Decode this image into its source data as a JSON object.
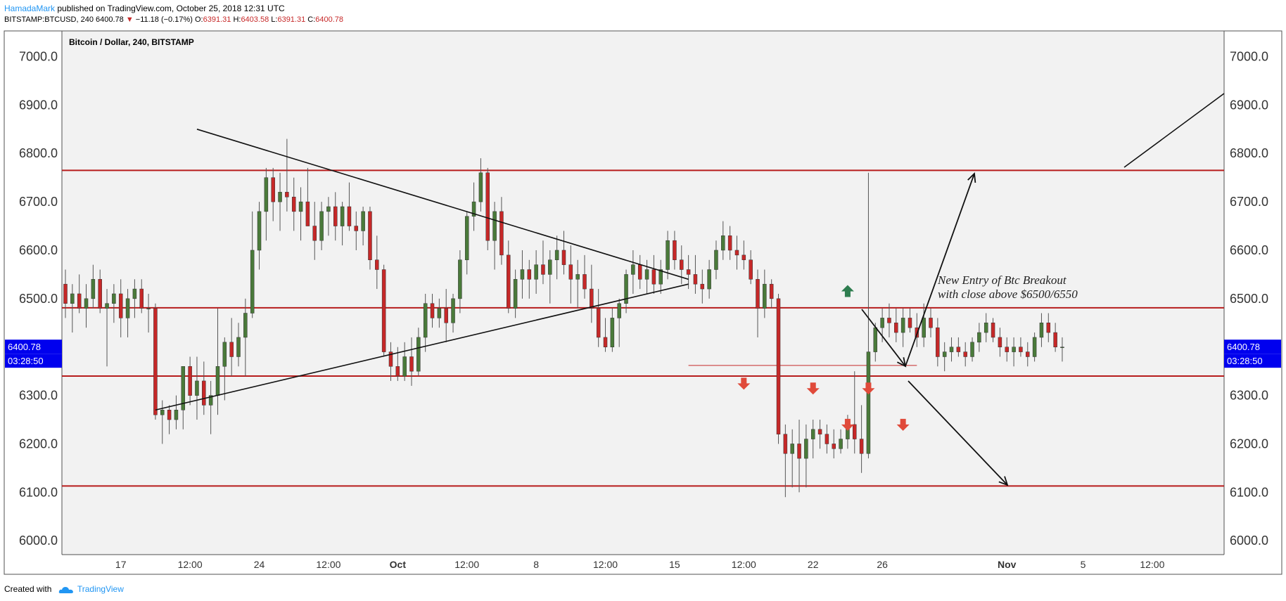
{
  "header": {
    "author": "HamadaMark",
    "published": "published on TradingView.com, October 25, 2018 12:31 UTC",
    "symbol_line": "BITSTAMP:BTCUSD, 240 6400.78",
    "change": "−11.18 (−0.17%)",
    "o_label": "O:",
    "o_value": "6391.31",
    "h_label": "H:",
    "h_value": "6403.58",
    "l_label": "L:",
    "l_value": "6391.31",
    "c_label": "C:",
    "c_value": "6400.78",
    "down_arrow": "▼"
  },
  "footer": {
    "created_with": "Created with",
    "brand": "TradingView"
  },
  "chart_data": {
    "type": "candlestick",
    "title": "Bitcoin / Dollar, 240, BITSTAMP",
    "ylim": [
      5970,
      7030
    ],
    "y_ticks": [
      "7000.0",
      "6900.0",
      "6800.0",
      "6700.0",
      "6600.0",
      "6500.0",
      "6400.0",
      "6300.0",
      "6200.0",
      "6100.0",
      "6000.0"
    ],
    "y_tick_values": [
      7000,
      6900,
      6800,
      6700,
      6600,
      6500,
      6400,
      6300,
      6200,
      6100,
      6000
    ],
    "x_ticks": [
      {
        "label": "17",
        "bar": 8
      },
      {
        "label": "12:00",
        "bar": 18
      },
      {
        "label": "24",
        "bar": 28
      },
      {
        "label": "12:00",
        "bar": 38
      },
      {
        "label": "Oct",
        "bar": 48,
        "bold": true
      },
      {
        "label": "12:00",
        "bar": 58
      },
      {
        "label": "8",
        "bar": 68
      },
      {
        "label": "12:00",
        "bar": 78
      },
      {
        "label": "15",
        "bar": 88
      },
      {
        "label": "12:00",
        "bar": 98
      },
      {
        "label": "22",
        "bar": 108
      },
      {
        "label": "26",
        "bar": 118
      },
      {
        "label": "Nov",
        "bar": 136,
        "bold": true
      },
      {
        "label": "5",
        "bar": 147
      },
      {
        "label": "12:00",
        "bar": 157
      }
    ],
    "last_price": "6400.78",
    "countdown": "03:28:50",
    "candles": [
      [
        6530,
        6560,
        6460,
        6490
      ],
      [
        6490,
        6530,
        6430,
        6510
      ],
      [
        6510,
        6550,
        6470,
        6480
      ],
      [
        6480,
        6530,
        6440,
        6500
      ],
      [
        6500,
        6570,
        6480,
        6540
      ],
      [
        6540,
        6560,
        6470,
        6480
      ],
      [
        6480,
        6520,
        6360,
        6490
      ],
      [
        6490,
        6530,
        6450,
        6510
      ],
      [
        6510,
        6540,
        6420,
        6460
      ],
      [
        6460,
        6520,
        6420,
        6500
      ],
      [
        6500,
        6540,
        6460,
        6520
      ],
      [
        6520,
        6540,
        6470,
        6480
      ],
      [
        6480,
        6510,
        6430,
        6480
      ],
      [
        6480,
        6490,
        6250,
        6260
      ],
      [
        6260,
        6290,
        6200,
        6270
      ],
      [
        6270,
        6280,
        6220,
        6250
      ],
      [
        6250,
        6300,
        6230,
        6270
      ],
      [
        6270,
        6350,
        6230,
        6360
      ],
      [
        6360,
        6380,
        6280,
        6300
      ],
      [
        6300,
        6380,
        6250,
        6330
      ],
      [
        6330,
        6370,
        6260,
        6280
      ],
      [
        6280,
        6330,
        6220,
        6300
      ],
      [
        6300,
        6480,
        6260,
        6360
      ],
      [
        6360,
        6420,
        6290,
        6410
      ],
      [
        6410,
        6460,
        6340,
        6380
      ],
      [
        6380,
        6450,
        6360,
        6420
      ],
      [
        6420,
        6500,
        6340,
        6470
      ],
      [
        6470,
        6680,
        6460,
        6600
      ],
      [
        6600,
        6700,
        6560,
        6680
      ],
      [
        6680,
        6770,
        6620,
        6750
      ],
      [
        6750,
        6770,
        6660,
        6700
      ],
      [
        6700,
        6760,
        6640,
        6720
      ],
      [
        6720,
        6830,
        6680,
        6710
      ],
      [
        6710,
        6750,
        6640,
        6680
      ],
      [
        6680,
        6730,
        6620,
        6700
      ],
      [
        6700,
        6770,
        6650,
        6650
      ],
      [
        6650,
        6700,
        6580,
        6620
      ],
      [
        6620,
        6700,
        6600,
        6680
      ],
      [
        6680,
        6710,
        6630,
        6690
      ],
      [
        6690,
        6720,
        6620,
        6650
      ],
      [
        6650,
        6700,
        6610,
        6690
      ],
      [
        6690,
        6740,
        6640,
        6650
      ],
      [
        6650,
        6680,
        6600,
        6640
      ],
      [
        6640,
        6690,
        6610,
        6680
      ],
      [
        6680,
        6690,
        6560,
        6580
      ],
      [
        6580,
        6630,
        6520,
        6560
      ],
      [
        6560,
        6570,
        6380,
        6390
      ],
      [
        6390,
        6410,
        6330,
        6360
      ],
      [
        6360,
        6400,
        6330,
        6340
      ],
      [
        6340,
        6410,
        6330,
        6380
      ],
      [
        6380,
        6420,
        6320,
        6350
      ],
      [
        6350,
        6440,
        6340,
        6420
      ],
      [
        6420,
        6510,
        6390,
        6490
      ],
      [
        6490,
        6510,
        6440,
        6460
      ],
      [
        6460,
        6500,
        6440,
        6480
      ],
      [
        6480,
        6520,
        6410,
        6450
      ],
      [
        6450,
        6510,
        6430,
        6500
      ],
      [
        6500,
        6600,
        6470,
        6580
      ],
      [
        6580,
        6680,
        6550,
        6670
      ],
      [
        6670,
        6740,
        6640,
        6700
      ],
      [
        6700,
        6790,
        6680,
        6760
      ],
      [
        6760,
        6770,
        6600,
        6620
      ],
      [
        6620,
        6700,
        6560,
        6680
      ],
      [
        6680,
        6710,
        6570,
        6590
      ],
      [
        6590,
        6620,
        6470,
        6480
      ],
      [
        6480,
        6560,
        6460,
        6540
      ],
      [
        6540,
        6600,
        6500,
        6560
      ],
      [
        6560,
        6580,
        6500,
        6540
      ],
      [
        6540,
        6600,
        6510,
        6570
      ],
      [
        6570,
        6620,
        6530,
        6550
      ],
      [
        6550,
        6600,
        6490,
        6580
      ],
      [
        6580,
        6630,
        6540,
        6600
      ],
      [
        6600,
        6640,
        6550,
        6570
      ],
      [
        6570,
        6610,
        6490,
        6540
      ],
      [
        6540,
        6580,
        6480,
        6550
      ],
      [
        6550,
        6590,
        6500,
        6520
      ],
      [
        6520,
        6570,
        6450,
        6480
      ],
      [
        6480,
        6520,
        6400,
        6420
      ],
      [
        6420,
        6460,
        6390,
        6400
      ],
      [
        6400,
        6480,
        6390,
        6460
      ],
      [
        6460,
        6500,
        6400,
        6490
      ],
      [
        6490,
        6560,
        6470,
        6550
      ],
      [
        6550,
        6600,
        6510,
        6570
      ],
      [
        6570,
        6590,
        6520,
        6540
      ],
      [
        6540,
        6580,
        6510,
        6560
      ],
      [
        6560,
        6590,
        6510,
        6530
      ],
      [
        6530,
        6580,
        6510,
        6560
      ],
      [
        6560,
        6640,
        6540,
        6620
      ],
      [
        6620,
        6640,
        6560,
        6580
      ],
      [
        6580,
        6610,
        6530,
        6560
      ],
      [
        6560,
        6590,
        6520,
        6550
      ],
      [
        6550,
        6590,
        6510,
        6530
      ],
      [
        6530,
        6560,
        6490,
        6520
      ],
      [
        6520,
        6580,
        6500,
        6560
      ],
      [
        6560,
        6620,
        6540,
        6600
      ],
      [
        6600,
        6660,
        6580,
        6630
      ],
      [
        6630,
        6650,
        6580,
        6600
      ],
      [
        6600,
        6630,
        6560,
        6590
      ],
      [
        6590,
        6620,
        6560,
        6580
      ],
      [
        6580,
        6600,
        6530,
        6540
      ],
      [
        6540,
        6560,
        6420,
        6480
      ],
      [
        6480,
        6560,
        6460,
        6530
      ],
      [
        6530,
        6540,
        6480,
        6500
      ],
      [
        6500,
        6510,
        6200,
        6220
      ],
      [
        6220,
        6240,
        6090,
        6180
      ],
      [
        6180,
        6230,
        6110,
        6200
      ],
      [
        6200,
        6250,
        6100,
        6170
      ],
      [
        6170,
        6240,
        6110,
        6210
      ],
      [
        6210,
        6250,
        6170,
        6230
      ],
      [
        6230,
        6250,
        6190,
        6220
      ],
      [
        6220,
        6240,
        6180,
        6200
      ],
      [
        6200,
        6230,
        6170,
        6190
      ],
      [
        6190,
        6230,
        6180,
        6210
      ],
      [
        6210,
        6260,
        6190,
        6240
      ],
      [
        6240,
        6350,
        6180,
        6210
      ],
      [
        6210,
        6280,
        6140,
        6180
      ],
      [
        6180,
        6760,
        6170,
        6390
      ],
      [
        6390,
        6450,
        6370,
        6440
      ],
      [
        6440,
        6480,
        6410,
        6460
      ],
      [
        6460,
        6490,
        6420,
        6450
      ],
      [
        6450,
        6480,
        6410,
        6430
      ],
      [
        6430,
        6480,
        6400,
        6460
      ],
      [
        6460,
        6480,
        6430,
        6440
      ],
      [
        6440,
        6470,
        6400,
        6420
      ],
      [
        6420,
        6490,
        6400,
        6460
      ],
      [
        6460,
        6480,
        6420,
        6440
      ],
      [
        6440,
        6460,
        6360,
        6380
      ],
      [
        6380,
        6410,
        6350,
        6390
      ],
      [
        6390,
        6420,
        6370,
        6400
      ],
      [
        6400,
        6420,
        6380,
        6390
      ],
      [
        6390,
        6410,
        6360,
        6380
      ],
      [
        6380,
        6420,
        6370,
        6410
      ],
      [
        6410,
        6450,
        6390,
        6430
      ],
      [
        6430,
        6470,
        6410,
        6450
      ],
      [
        6450,
        6460,
        6410,
        6420
      ],
      [
        6420,
        6440,
        6380,
        6400
      ],
      [
        6400,
        6420,
        6370,
        6390
      ],
      [
        6390,
        6420,
        6360,
        6400
      ],
      [
        6400,
        6420,
        6380,
        6390
      ],
      [
        6390,
        6410,
        6360,
        6380
      ],
      [
        6380,
        6430,
        6370,
        6420
      ],
      [
        6420,
        6470,
        6400,
        6450
      ],
      [
        6450,
        6470,
        6410,
        6430
      ],
      [
        6430,
        6450,
        6390,
        6400
      ],
      [
        6400,
        6420,
        6370,
        6400
      ]
    ],
    "price_hlines": [
      6765,
      6481,
      6340,
      6113
    ],
    "support_line": [
      6362,
      90,
      123
    ],
    "triangle": {
      "upper": [
        [
          19,
          6850
        ],
        [
          90,
          6540
        ]
      ],
      "lower": [
        [
          13,
          6270
        ],
        [
          90,
          6530
        ]
      ]
    },
    "markers_up": [
      [
        113,
        6515
      ]
    ],
    "markers_down": [
      [
        98,
        6325
      ],
      [
        108,
        6315
      ],
      [
        116,
        6315
      ],
      [
        113,
        6240
      ],
      [
        121,
        6240
      ]
    ],
    "annotation": [
      "New Entry of Btc Breakout",
      "with close above $6500/6550"
    ]
  }
}
